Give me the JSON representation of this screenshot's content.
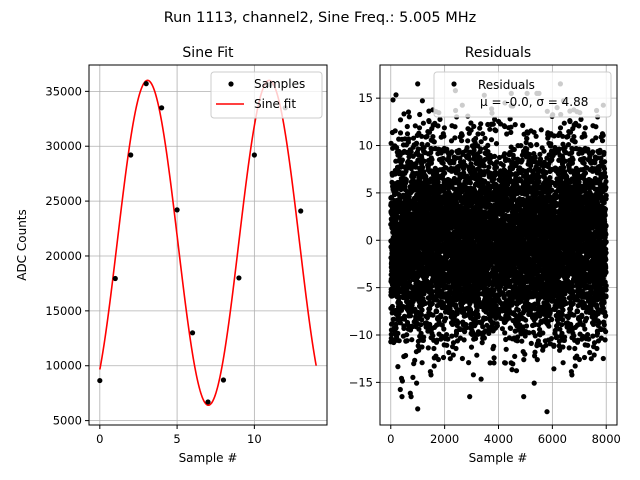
{
  "figure": {
    "title": "Run 1113, channel2, Sine Freq.: 5.005 MHz"
  },
  "colors": {
    "samples": "#000000",
    "fit": "#ff0000",
    "grid": "#b0b0b0"
  },
  "chart_data": [
    {
      "type": "scatter",
      "title": "Sine Fit",
      "xlabel": "Sample #",
      "ylabel": "ADC Counts",
      "xlim": [
        -0.7,
        14.7
      ],
      "ylim": [
        4600,
        37400
      ],
      "xticks": [
        0,
        5,
        10
      ],
      "yticks": [
        5000,
        10000,
        15000,
        20000,
        25000,
        30000,
        35000
      ],
      "grid": true,
      "legend_position": "top-right",
      "series": [
        {
          "name": "Samples",
          "kind": "scatter",
          "color": "#000000",
          "x": [
            0,
            1,
            2,
            3,
            4,
            5,
            6,
            7,
            8,
            9,
            10,
            11,
            12,
            13
          ],
          "y": [
            8650,
            17950,
            29200,
            35700,
            33500,
            24200,
            13000,
            6700,
            8700,
            18000,
            29200,
            35600,
            33500,
            24100
          ]
        },
        {
          "name": "Sine fit",
          "kind": "line",
          "color": "#ff0000",
          "model": {
            "offset": 21200,
            "amplitude": 14800,
            "period": 7.87,
            "phase": -0.895
          },
          "x_range": [
            0,
            14
          ]
        }
      ]
    },
    {
      "type": "scatter",
      "title": "Residuals",
      "xlabel": "Sample #",
      "ylabel": "",
      "xlim": [
        -400,
        8400
      ],
      "ylim": [
        -19.5,
        18.5
      ],
      "xticks": [
        0,
        2000,
        4000,
        6000,
        8000
      ],
      "yticks": [
        -15,
        -10,
        -5,
        0,
        5,
        10,
        15
      ],
      "grid": true,
      "legend_position": "top-right",
      "legend": {
        "series_name": "Residuals",
        "stats_label": "μ = -0.0, σ = 4.88"
      },
      "series": [
        {
          "name": "Residuals",
          "kind": "scatter",
          "color": "#000000",
          "n_points": 8000,
          "x_range": [
            0,
            8000
          ],
          "mean": 0.0,
          "std": 4.88,
          "notable_points": [
            {
              "x": 1000,
              "y": -17.8
            },
            {
              "x": 5800,
              "y": -18.1
            },
            {
              "x": 1000,
              "y": 16.5
            },
            {
              "x": 6300,
              "y": 16.5
            },
            {
              "x": 2400,
              "y": 15.8
            }
          ]
        }
      ]
    }
  ]
}
